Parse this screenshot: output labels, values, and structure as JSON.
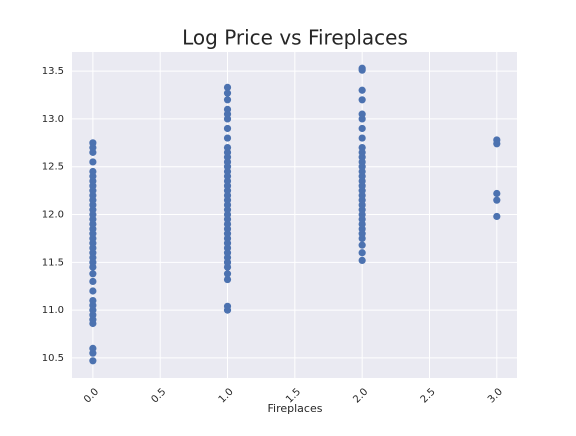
{
  "chart_data": {
    "type": "scatter",
    "title": "Log Price vs Fireplaces",
    "x_label": "Fireplaces",
    "color": "#4c72b0",
    "grid": true,
    "xlim": [
      -0.155,
      3.15
    ],
    "ylim": [
      10.29,
      13.7
    ],
    "xticks": [
      {
        "value": 0,
        "label": "0.0"
      },
      {
        "value": 0.5,
        "label": "0.5"
      },
      {
        "value": 1,
        "label": "1.0"
      },
      {
        "value": 1.5,
        "label": "1.5"
      },
      {
        "value": 2,
        "label": "2.0"
      },
      {
        "value": 2.5,
        "label": "2.5"
      },
      {
        "value": 3,
        "label": "3.0"
      }
    ],
    "yticks": [
      10.5,
      {
        "value": 11,
        "label": "11.0"
      },
      11.5,
      {
        "value": 12,
        "label": "12.0"
      },
      12.5,
      {
        "value": 13,
        "label": "13.0"
      },
      13.5
    ],
    "x": [
      0,
      0,
      0,
      0,
      0,
      0,
      0,
      0,
      0,
      0,
      0,
      0,
      0,
      0,
      0,
      0,
      0,
      0,
      0,
      0,
      0,
      0,
      0,
      0,
      0,
      0,
      0,
      0,
      0,
      0,
      0,
      0,
      0,
      0,
      0,
      0,
      0,
      1,
      1,
      1,
      1,
      1,
      1,
      1,
      1,
      1,
      1,
      1,
      1,
      1,
      1,
      1,
      1,
      1,
      1,
      1,
      1,
      1,
      1,
      1,
      1,
      1,
      1,
      1,
      1,
      1,
      1,
      1,
      1,
      1,
      1,
      1,
      1,
      1,
      1,
      2,
      2,
      2,
      2,
      2,
      2,
      2,
      2,
      2,
      2,
      2,
      2,
      2,
      2,
      2,
      2,
      2,
      2,
      2,
      2,
      2,
      2,
      2,
      2,
      2,
      2,
      2,
      2,
      2,
      2,
      2,
      3,
      3,
      3,
      3,
      3
    ],
    "values": [
      10.47,
      10.55,
      10.6,
      10.86,
      10.9,
      10.95,
      11.0,
      11.05,
      11.1,
      11.2,
      11.3,
      11.38,
      11.45,
      11.5,
      11.55,
      11.6,
      11.65,
      11.7,
      11.75,
      11.8,
      11.85,
      11.9,
      11.95,
      12.0,
      12.05,
      12.1,
      12.15,
      12.2,
      12.25,
      12.3,
      12.35,
      12.4,
      12.45,
      12.55,
      12.65,
      12.7,
      12.75,
      11.0,
      11.04,
      11.32,
      11.38,
      11.45,
      11.5,
      11.55,
      11.6,
      11.65,
      11.7,
      11.75,
      11.8,
      11.85,
      11.9,
      11.95,
      12.0,
      12.05,
      12.1,
      12.15,
      12.2,
      12.25,
      12.3,
      12.35,
      12.4,
      12.45,
      12.5,
      12.55,
      12.6,
      12.65,
      12.7,
      12.8,
      12.9,
      13.0,
      13.05,
      13.1,
      13.2,
      13.27,
      13.33,
      11.52,
      11.6,
      11.68,
      11.75,
      11.8,
      11.85,
      11.9,
      11.95,
      12.0,
      12.05,
      12.1,
      12.15,
      12.2,
      12.25,
      12.3,
      12.35,
      12.4,
      12.45,
      12.5,
      12.55,
      12.6,
      12.65,
      12.7,
      12.8,
      12.9,
      13.0,
      13.05,
      13.2,
      13.3,
      13.51,
      13.53,
      11.98,
      12.15,
      12.22,
      12.74,
      12.78
    ]
  }
}
